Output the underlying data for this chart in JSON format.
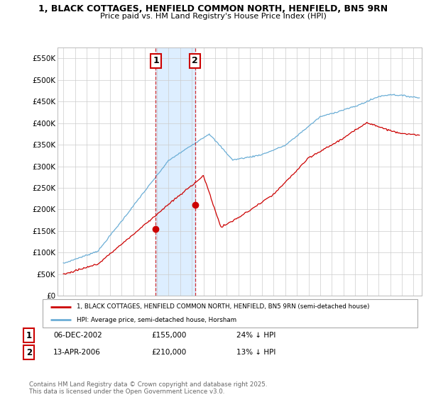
{
  "title1": "1, BLACK COTTAGES, HENFIELD COMMON NORTH, HENFIELD, BN5 9RN",
  "title2": "Price paid vs. HM Land Registry's House Price Index (HPI)",
  "ylim": [
    0,
    575000
  ],
  "yticks": [
    0,
    50000,
    100000,
    150000,
    200000,
    250000,
    300000,
    350000,
    400000,
    450000,
    500000,
    550000
  ],
  "ytick_labels": [
    "£0",
    "£50K",
    "£100K",
    "£150K",
    "£200K",
    "£250K",
    "£300K",
    "£350K",
    "£400K",
    "£450K",
    "£500K",
    "£550K"
  ],
  "sale1_date": 2002.92,
  "sale1_price": 155000,
  "sale2_date": 2006.28,
  "sale2_price": 210000,
  "hpi_color": "#6baed6",
  "price_color": "#cc0000",
  "highlight_color": "#ddeeff",
  "sale1_box_color": "#cc0000",
  "sale2_box_color": "#cc0000",
  "legend_price_label": "1, BLACK COTTAGES, HENFIELD COMMON NORTH, HENFIELD, BN5 9RN (semi-detached house)",
  "legend_hpi_label": "HPI: Average price, semi-detached house, Horsham",
  "footnote": "Contains HM Land Registry data © Crown copyright and database right 2025.\nThis data is licensed under the Open Government Licence v3.0.",
  "xmin": 1994.5,
  "xmax": 2025.7,
  "background_color": "#ffffff"
}
